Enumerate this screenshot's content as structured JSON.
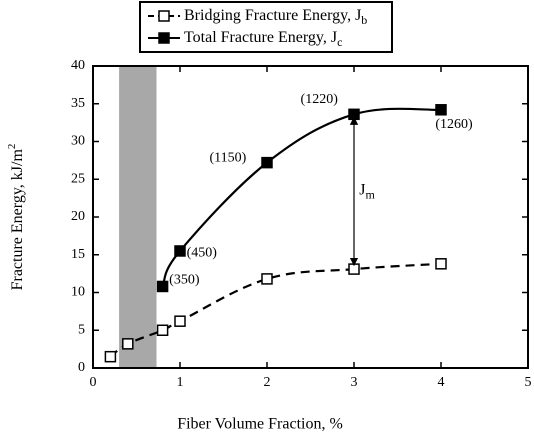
{
  "chart_data": {
    "type": "line",
    "xlabel": "Fiber Volume Fraction, %",
    "ylabel": "Fracture Energy, kJ/m",
    "ylabel_sup": "2",
    "xlim": [
      0,
      5
    ],
    "xticks": [
      0,
      1,
      2,
      3,
      4,
      5
    ],
    "ylim": [
      0,
      40
    ],
    "yticks": [
      0,
      5,
      10,
      15,
      20,
      25,
      30,
      35,
      40
    ],
    "shaded_region": [
      0.3,
      0.73
    ],
    "series": [
      {
        "name": "Bridging Fracture Energy, J",
        "name_sub": "b",
        "color": "#000000",
        "style": "dashed",
        "marker": "open-square",
        "x": [
          0.2,
          0.4,
          0.8,
          1,
          2,
          3,
          4
        ],
        "values": [
          1.5,
          3.2,
          5,
          6.2,
          11.8,
          13.1,
          13.8
        ]
      },
      {
        "name": "Total Fracture Energy, J",
        "name_sub": "c",
        "color": "#000000",
        "style": "solid",
        "marker": "filled-square",
        "x": [
          0.8,
          1,
          2,
          3,
          4
        ],
        "values": [
          10.8,
          15.5,
          27.2,
          33.6,
          34.2
        ]
      }
    ],
    "annotations": [
      {
        "text": "(350)",
        "x": 1.05,
        "y": 11.6
      },
      {
        "text": "(450)",
        "x": 1.25,
        "y": 15.2
      },
      {
        "text": "(1150)",
        "x": 1.55,
        "y": 27.8
      },
      {
        "text": "(1220)",
        "x": 2.6,
        "y": 35.5
      },
      {
        "text": "(1260)",
        "x": 4.15,
        "y": 32.2
      }
    ],
    "jm_label": {
      "text": "J",
      "sub": "m",
      "x": 3.06,
      "y": 23.5
    },
    "arrow": {
      "x": 3,
      "y1": 33.2,
      "y2": 13.6
    }
  }
}
